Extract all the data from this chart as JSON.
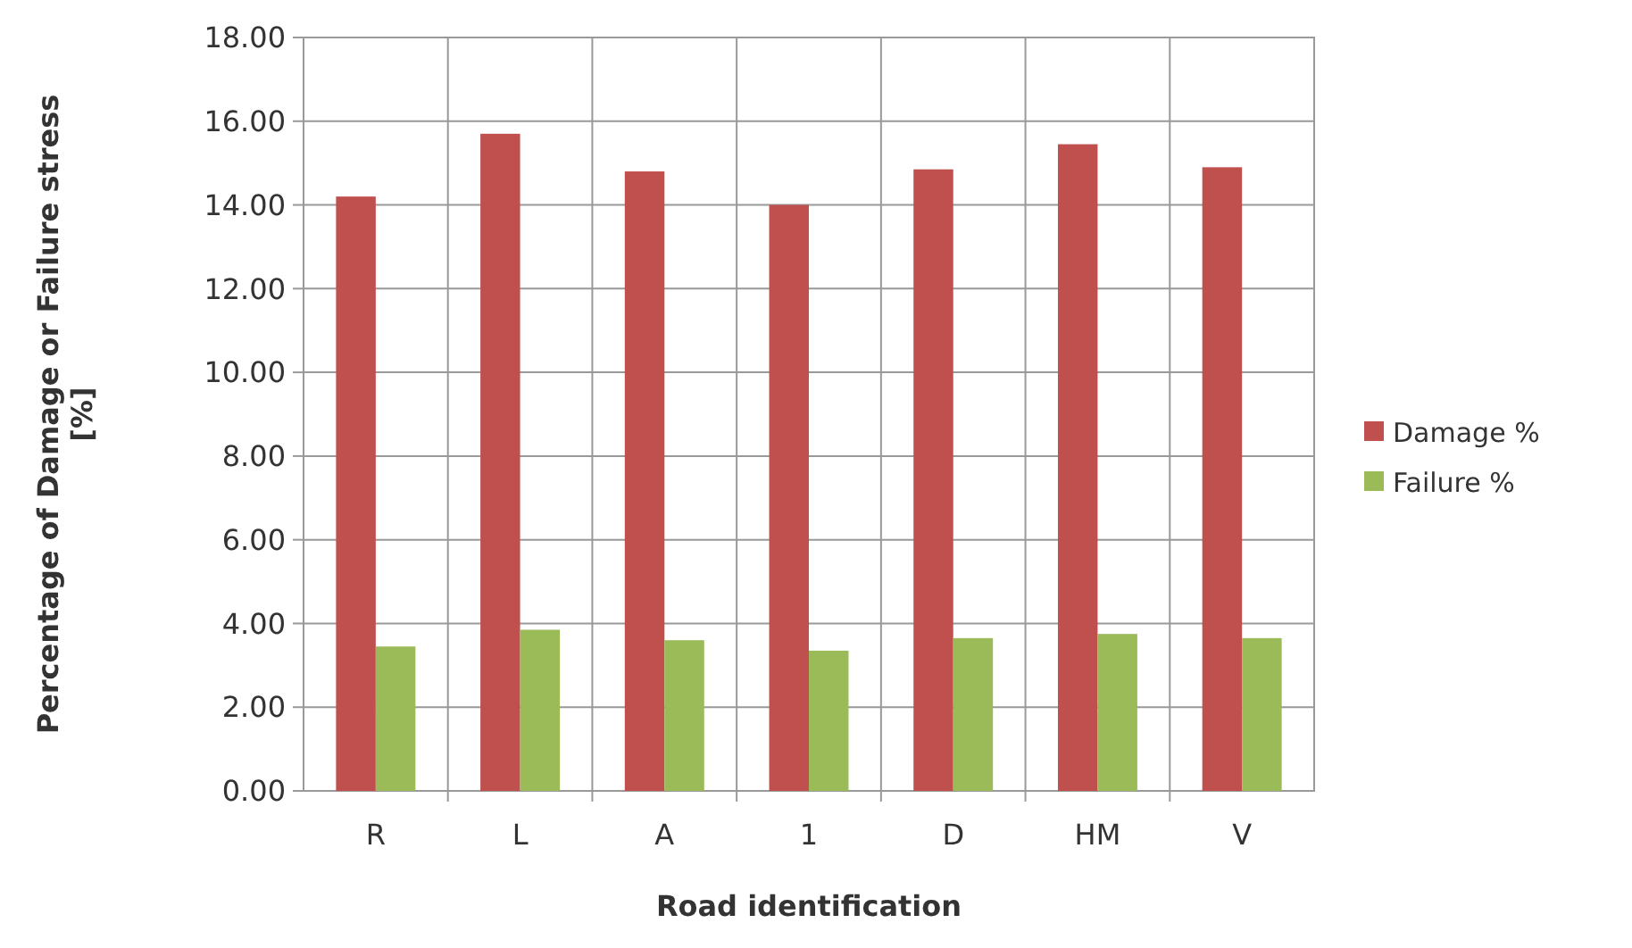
{
  "chart_data": {
    "type": "bar",
    "xlabel": "Road identification",
    "ylabel": "Percentage of Damage or Failure stress [%]",
    "categories": [
      "R",
      "L",
      "A",
      "1",
      "D",
      "HM",
      "V"
    ],
    "series": [
      {
        "name": "Damage %",
        "color": "#c0504d",
        "values": [
          14.2,
          15.7,
          14.8,
          14.0,
          14.85,
          15.45,
          14.9
        ]
      },
      {
        "name": "Failure %",
        "color": "#9bbb59",
        "values": [
          3.45,
          3.85,
          3.6,
          3.35,
          3.65,
          3.75,
          3.65
        ]
      }
    ],
    "ylim": [
      0,
      18
    ],
    "yticks": [
      {
        "value": 0,
        "label": "0.00"
      },
      {
        "value": 2,
        "label": "2.00"
      },
      {
        "value": 4,
        "label": "4.00"
      },
      {
        "value": 6,
        "label": "6.00"
      },
      {
        "value": 8,
        "label": "8.00"
      },
      {
        "value": 10,
        "label": "10.00"
      },
      {
        "value": 12,
        "label": "12.00"
      },
      {
        "value": 14,
        "label": "14.00"
      },
      {
        "value": 16,
        "label": "16.00"
      },
      {
        "value": 18,
        "label": "18.00"
      }
    ],
    "grid": true,
    "legend": "right"
  }
}
